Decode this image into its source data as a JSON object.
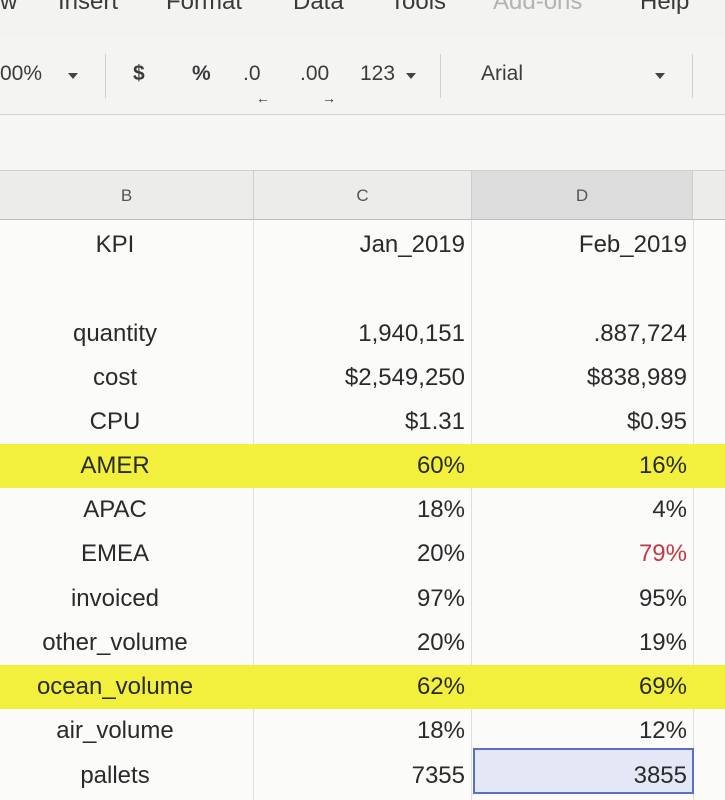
{
  "menu": {
    "items": [
      {
        "label": "w",
        "dim": false
      },
      {
        "label": "Insert",
        "dim": false
      },
      {
        "label": "Format",
        "dim": false
      },
      {
        "label": "Data",
        "dim": false
      },
      {
        "label": "Tools",
        "dim": false
      },
      {
        "label": "Add-ons",
        "dim": true
      },
      {
        "label": "Help",
        "dim": false
      }
    ]
  },
  "toolbar": {
    "zoom": "00%",
    "currency": "$",
    "percent": "%",
    "decrease_decimal": ".0",
    "increase_decimal": ".00",
    "more_formats": "123",
    "font": "Arial"
  },
  "columns": [
    "B",
    "C",
    "D"
  ],
  "rows": [
    {
      "b": "KPI",
      "c": "Jan_2019",
      "d": "Feb_2019",
      "highlight": false
    },
    {
      "b": "",
      "c": "",
      "d": "",
      "highlight": false
    },
    {
      "b": "quantity",
      "c": "1,940,151",
      "d": ".887,724",
      "highlight": false
    },
    {
      "b": "cost",
      "c": "$2,549,250",
      "d": "$838,989",
      "highlight": false
    },
    {
      "b": "CPU",
      "c": "$1.31",
      "d": "$0.95",
      "highlight": false
    },
    {
      "b": "AMER",
      "c": "60%",
      "d": "16%",
      "highlight": true
    },
    {
      "b": "APAC",
      "c": "18%",
      "d": "4%",
      "highlight": false
    },
    {
      "b": "EMEA",
      "c": "20%",
      "d": "79%",
      "highlight": false
    },
    {
      "b": "invoiced",
      "c": "97%",
      "d": "95%",
      "highlight": false
    },
    {
      "b": "other_volume",
      "c": "20%",
      "d": "19%",
      "highlight": false
    },
    {
      "b": "ocean_volume",
      "c": "62%",
      "d": "69%",
      "highlight": true
    },
    {
      "b": "air_volume",
      "c": "18%",
      "d": "12%",
      "highlight": false
    },
    {
      "b": "pallets",
      "c": "7355",
      "d": "3855",
      "highlight": false
    }
  ],
  "colors": {
    "highlight": "#f2f03c",
    "selection_border": "#5b6fc7",
    "selected_text": "#c23a45"
  }
}
